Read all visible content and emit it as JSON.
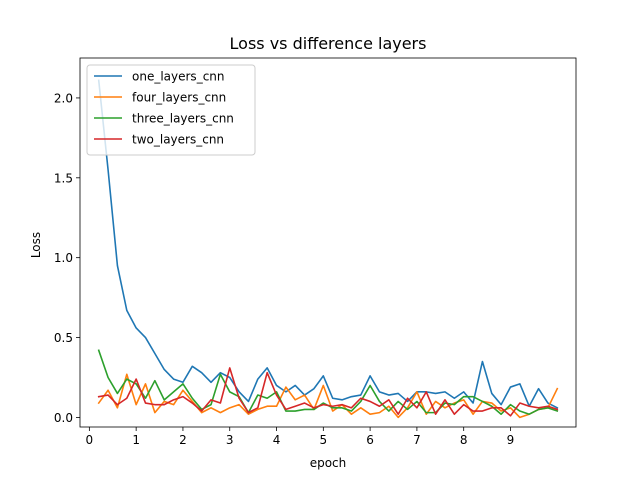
{
  "chart_data": {
    "type": "line",
    "title": "Loss vs difference layers",
    "xlabel": "epoch",
    "ylabel": "Loss",
    "xlim": [
      -0.2,
      10.4
    ],
    "ylim": [
      -0.06,
      2.25
    ],
    "x_ticks": [
      0,
      1,
      2,
      3,
      4,
      5,
      6,
      7,
      8,
      9
    ],
    "y_ticks": [
      0.0,
      0.5,
      1.0,
      1.5,
      2.0
    ],
    "y_tick_labels": [
      "0.0",
      "0.5",
      "1.0",
      "1.5",
      "2.0"
    ],
    "grid": false,
    "legend_position": "top-left",
    "x": [
      0.2,
      0.4,
      0.6,
      0.8,
      1.0,
      1.2,
      1.4,
      1.6,
      1.8,
      2.0,
      2.2,
      2.4,
      2.6,
      2.8,
      3.0,
      3.2,
      3.4,
      3.6,
      3.8,
      4.0,
      4.2,
      4.4,
      4.6,
      4.8,
      5.0,
      5.2,
      5.4,
      5.6,
      5.8,
      6.0,
      6.2,
      6.4,
      6.6,
      6.8,
      7.0,
      7.2,
      7.4,
      7.6,
      7.8,
      8.0,
      8.2,
      8.4,
      8.6,
      8.8,
      9.0,
      9.2,
      9.4,
      9.6,
      9.8,
      10.0
    ],
    "series": [
      {
        "name": "one_layers_cnn",
        "color": "#1f77b4",
        "values": [
          2.11,
          1.55,
          0.95,
          0.67,
          0.56,
          0.5,
          0.4,
          0.3,
          0.24,
          0.22,
          0.32,
          0.28,
          0.22,
          0.28,
          0.25,
          0.16,
          0.1,
          0.24,
          0.31,
          0.2,
          0.16,
          0.2,
          0.14,
          0.18,
          0.26,
          0.12,
          0.11,
          0.13,
          0.14,
          0.26,
          0.16,
          0.14,
          0.15,
          0.1,
          0.16,
          0.16,
          0.15,
          0.16,
          0.12,
          0.16,
          0.09,
          0.35,
          0.15,
          0.08,
          0.19,
          0.21,
          0.07,
          0.18,
          0.09,
          0.06
        ]
      },
      {
        "name": "four_layers_cnn",
        "color": "#ff7f0e",
        "values": [
          0.09,
          0.17,
          0.06,
          0.27,
          0.08,
          0.21,
          0.03,
          0.1,
          0.08,
          0.17,
          0.1,
          0.03,
          0.06,
          0.03,
          0.06,
          0.08,
          0.02,
          0.05,
          0.07,
          0.07,
          0.19,
          0.11,
          0.14,
          0.05,
          0.2,
          0.04,
          0.08,
          0.02,
          0.06,
          0.02,
          0.03,
          0.07,
          0.0,
          0.06,
          0.16,
          0.02,
          0.1,
          0.06,
          0.09,
          0.11,
          0.02,
          0.1,
          0.09,
          0.04,
          0.06,
          0.0,
          0.02,
          0.05,
          0.06,
          0.18
        ]
      },
      {
        "name": "three_layers_cnn",
        "color": "#2ca02c",
        "values": [
          0.42,
          0.25,
          0.15,
          0.24,
          0.21,
          0.12,
          0.23,
          0.11,
          0.16,
          0.21,
          0.12,
          0.05,
          0.08,
          0.27,
          0.16,
          0.13,
          0.03,
          0.14,
          0.12,
          0.16,
          0.04,
          0.04,
          0.05,
          0.05,
          0.09,
          0.06,
          0.06,
          0.04,
          0.1,
          0.2,
          0.1,
          0.04,
          0.1,
          0.05,
          0.1,
          0.03,
          0.03,
          0.09,
          0.08,
          0.13,
          0.13,
          0.1,
          0.07,
          0.02,
          0.08,
          0.04,
          0.02,
          0.05,
          0.06,
          0.04
        ]
      },
      {
        "name": "two_layers_cnn",
        "color": "#d62728",
        "values": [
          0.13,
          0.14,
          0.08,
          0.12,
          0.24,
          0.09,
          0.08,
          0.08,
          0.11,
          0.13,
          0.09,
          0.04,
          0.11,
          0.09,
          0.31,
          0.12,
          0.03,
          0.06,
          0.28,
          0.14,
          0.05,
          0.07,
          0.09,
          0.06,
          0.08,
          0.07,
          0.08,
          0.06,
          0.12,
          0.1,
          0.07,
          0.11,
          0.02,
          0.12,
          0.06,
          0.16,
          0.02,
          0.11,
          0.02,
          0.08,
          0.04,
          0.04,
          0.06,
          0.06,
          0.01,
          0.09,
          0.07,
          0.06,
          0.07,
          0.05
        ]
      }
    ]
  }
}
